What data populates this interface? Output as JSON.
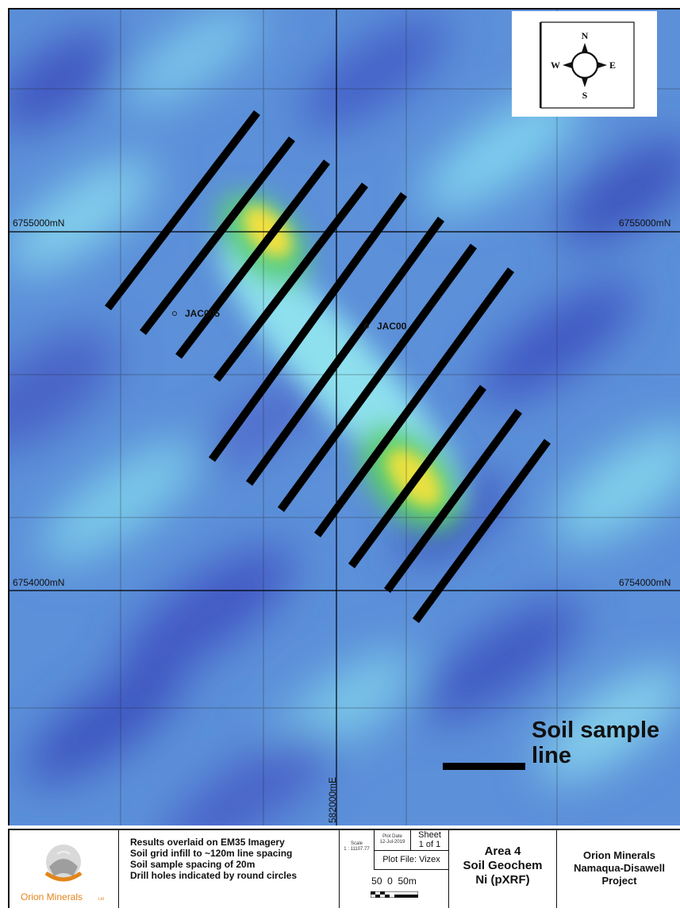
{
  "map": {
    "grid_labels": {
      "north_upper_left": "6755000mN",
      "north_upper_right": "6755000mN",
      "north_lower_left": "6754000mN",
      "north_lower_right": "6754000mN",
      "easting": "582000mE"
    },
    "drill_holes": [
      {
        "label": "JAC005"
      },
      {
        "label": "JAC00"
      }
    ],
    "compass": {
      "n": "N",
      "s": "S",
      "e": "E",
      "w": "W"
    },
    "legend": {
      "label": "Soil sample line"
    },
    "colors": {
      "background": "#5a8fd8",
      "anomaly_high": "#f2e040",
      "anomaly_mid": "#5ccf63",
      "lines": "#000000"
    }
  },
  "title_block": {
    "logo_text": "Orion Minerals",
    "logo_suffix": "Ltd",
    "notes": [
      "Results overlaid on EM35 Imagery",
      "Soil grid infill to ~120m line spacing",
      "Soil sample spacing of 20m",
      "Drill holes indicated by round circles"
    ],
    "scale_label": "Scale",
    "scale_value": "1 : 11107.77",
    "plot_date_label": "Plot Date",
    "plot_date_value": "12-Jul-2019",
    "sheet_label": "Sheet",
    "sheet_value": "1 of 1",
    "plot_file": "Plot File: Vizex",
    "scale_bar_text": "50  0  50m",
    "area": "Area 4",
    "subject": "Soil Geochem",
    "element": "Ni (pXRF)",
    "company": "Orion Minerals",
    "project_line1": "Namaqua-Disawell",
    "project_line2": "Project"
  }
}
